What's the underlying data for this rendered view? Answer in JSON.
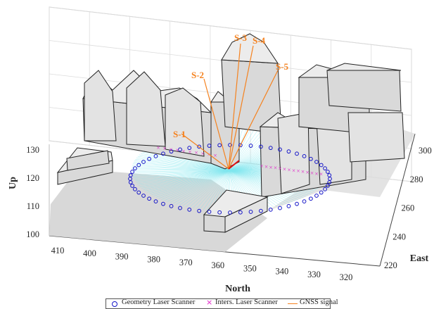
{
  "chart_data": {
    "type": "scatter",
    "title": "",
    "projection": "3d",
    "xlabel": "North",
    "ylabel": "East",
    "zlabel": "Up",
    "x_ticks": [
      "410",
      "400",
      "390",
      "380",
      "370",
      "360",
      "350",
      "340",
      "330",
      "320"
    ],
    "y_ticks": [
      "220",
      "240",
      "260",
      "280",
      "300"
    ],
    "z_ticks": [
      "100",
      "110",
      "120",
      "130"
    ],
    "grid": true,
    "legend_position": "bottom",
    "series": [
      {
        "name": "Geometry Laser Scanner",
        "marker": "circle",
        "color": "#1414c8"
      },
      {
        "name": "Inters. Laser Scanner",
        "marker": "x",
        "color": "#e020c8"
      },
      {
        "name": "GNSS signal",
        "marker": "line",
        "color": "#f5821f"
      }
    ],
    "satellites": [
      "S-1",
      "S-2",
      "S-3",
      "S-4",
      "S-5"
    ],
    "colors": {
      "geometry": "#1414c8",
      "intersection": "#e020c8",
      "gnss": "#f5821f",
      "scan_rays": "#7fe6ee",
      "building": "#d9d9d9"
    }
  }
}
